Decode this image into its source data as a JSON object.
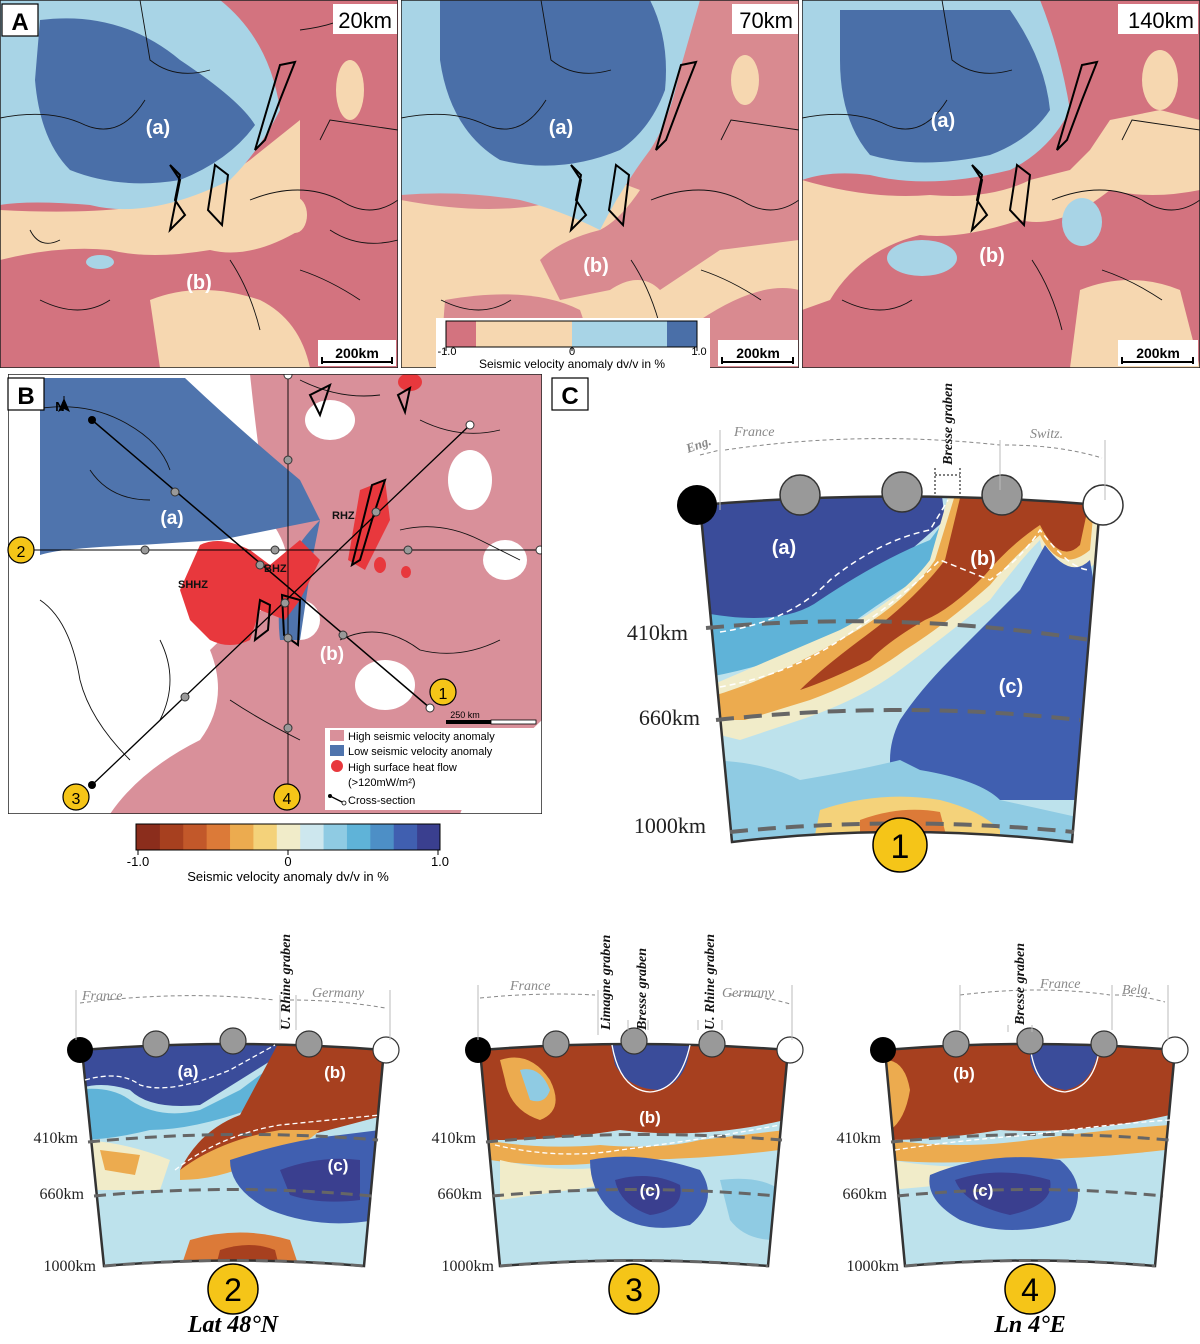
{
  "panel_letters": {
    "a": "A",
    "b": "B",
    "c": "C"
  },
  "map_depths": [
    "20km",
    "70km",
    "140km"
  ],
  "region_labels": {
    "a": "(a)",
    "b": "(b)",
    "c": "(c)"
  },
  "scale_bar_label": "200km",
  "discrete_legend": {
    "min": "-1.0",
    "mid": "0",
    "max": "1.0",
    "caption": "Seismic velocity anomaly dv/v in %",
    "colors": [
      "#d3737f",
      "#f6d7b0",
      "#a8d4e6",
      "#4a6fa8"
    ]
  },
  "panel_b": {
    "north_label": "N",
    "zone_labels": {
      "rhz": "RHZ",
      "bhz": "BHZ",
      "shhz": "SHHZ"
    },
    "scale_label": "250 km",
    "section_numbers": [
      "1",
      "2",
      "3",
      "4"
    ],
    "legend": [
      {
        "label": "High seismic velocity anomaly",
        "color": "#d9909a"
      },
      {
        "label": "Low seismic velocity anomaly",
        "color": "#4f74ad"
      },
      {
        "label": "High surface heat flow",
        "color": "#e8383d"
      },
      {
        "label": "(>120mW/m²)",
        "color": ""
      },
      {
        "label": "Cross-section",
        "color": "#000000"
      }
    ]
  },
  "continuous_legend": {
    "min": "-1.0",
    "mid": "0",
    "max": "1.0",
    "caption": "Seismic velocity anomaly dv/v in %",
    "colors": [
      "#8b2d1c",
      "#a7401f",
      "#c2582a",
      "#dc7a38",
      "#ecab4f",
      "#f4d27a",
      "#f1ecc9",
      "#cde7ee",
      "#8fcbe3",
      "#5fb3d8",
      "#4d8fc6",
      "#405fb0",
      "#3a3f8f"
    ]
  },
  "depth_labels": {
    "d410": "410km",
    "d660": "660km",
    "d1000": "1000km"
  },
  "sections": [
    {
      "number": "1",
      "countries": [
        "Eng.",
        "France",
        "Switz."
      ],
      "grabens": [
        "Bresse graben"
      ],
      "subtitle": ""
    },
    {
      "number": "2",
      "countries": [
        "France",
        "Germany"
      ],
      "grabens": [
        "U. Rhine graben"
      ],
      "subtitle": "Lat 48°N"
    },
    {
      "number": "3",
      "countries": [
        "France",
        "Germany"
      ],
      "grabens": [
        "Limagne graben",
        "Bresse graben",
        "U. Rhine graben"
      ],
      "subtitle": ""
    },
    {
      "number": "4",
      "countries": [
        "France",
        "Belg."
      ],
      "grabens": [
        "Bresse graben"
      ],
      "subtitle": "Ln 4°E"
    }
  ]
}
